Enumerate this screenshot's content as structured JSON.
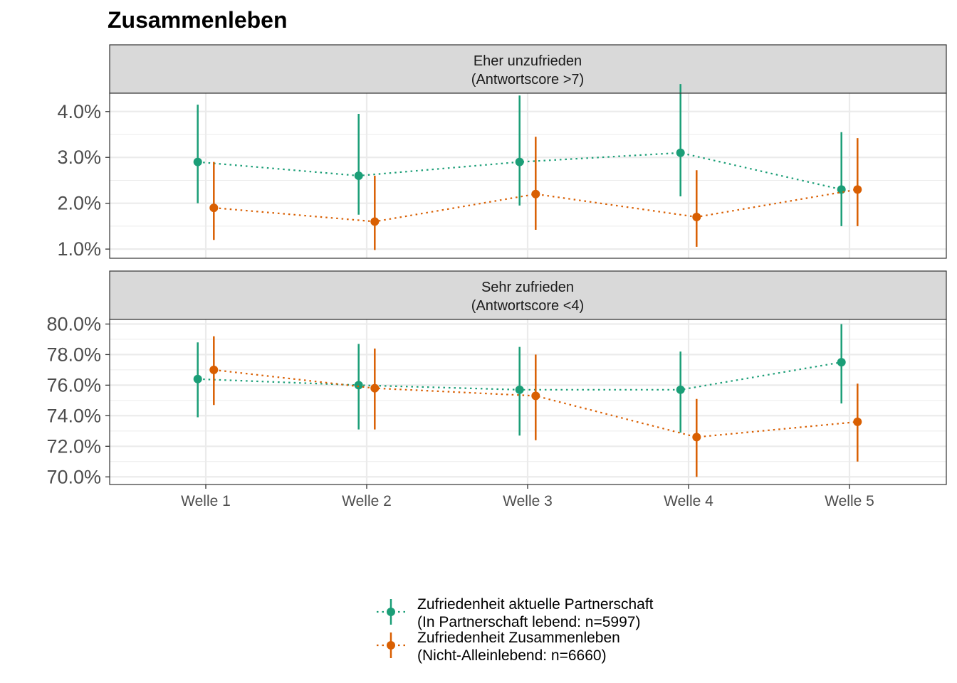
{
  "chart_data": {
    "type": "line",
    "title": "Zusammenleben",
    "xlabel": "",
    "ylabel": "",
    "categories": [
      "Welle 1",
      "Welle 2",
      "Welle 3",
      "Welle 4",
      "Welle 5"
    ],
    "series_colors": [
      "#1b9e77",
      "#d95f02"
    ],
    "line_style": "dotted",
    "grid": true,
    "legend_position": "bottom",
    "legend": [
      {
        "line1": "Zufriedenheit aktuelle Partnerschaft",
        "line2": "(In Partnerschaft lebend: n=5997)"
      },
      {
        "line1": "Zufriedenheit Zusammenleben",
        "line2": "(Nicht-Alleinlebend: n=6660)"
      }
    ],
    "panels": [
      {
        "strip_line1": "Eher unzufrieden",
        "strip_line2": "(Antwortscore >7)",
        "ylim": [
          0.8,
          4.4
        ],
        "yticks": [
          1.0,
          2.0,
          3.0,
          4.0
        ],
        "ytick_labels": [
          "1.0%",
          "2.0%",
          "3.0%",
          "4.0%"
        ],
        "series": [
          {
            "values": [
              2.9,
              2.6,
              2.9,
              3.1,
              2.3
            ],
            "lower": [
              2.0,
              1.75,
              1.95,
              2.15,
              1.5
            ],
            "upper": [
              4.15,
              3.95,
              4.35,
              4.6,
              3.55
            ]
          },
          {
            "values": [
              1.9,
              1.6,
              2.2,
              1.7,
              2.3
            ],
            "lower": [
              1.2,
              0.98,
              1.42,
              1.05,
              1.5
            ],
            "upper": [
              2.9,
              2.6,
              3.45,
              2.72,
              3.42
            ]
          }
        ]
      },
      {
        "strip_line1": "Sehr zufrieden",
        "strip_line2": "(Antwortscore <4)",
        "ylim": [
          69.5,
          80.3
        ],
        "yticks": [
          70,
          72,
          74,
          76,
          78,
          80
        ],
        "ytick_labels": [
          "70.0%",
          "72.0%",
          "74.0%",
          "76.0%",
          "78.0%",
          "80.0%"
        ],
        "series": [
          {
            "values": [
              76.4,
              76.0,
              75.7,
              75.7,
              77.5
            ],
            "lower": [
              73.9,
              73.1,
              72.7,
              72.9,
              74.8
            ],
            "upper": [
              78.8,
              78.7,
              78.5,
              78.2,
              80.0
            ]
          },
          {
            "values": [
              77.0,
              75.8,
              75.3,
              72.6,
              73.6
            ],
            "lower": [
              74.7,
              73.1,
              72.4,
              70.0,
              71.0
            ],
            "upper": [
              79.2,
              78.4,
              78.0,
              75.1,
              76.1
            ]
          }
        ]
      }
    ]
  }
}
